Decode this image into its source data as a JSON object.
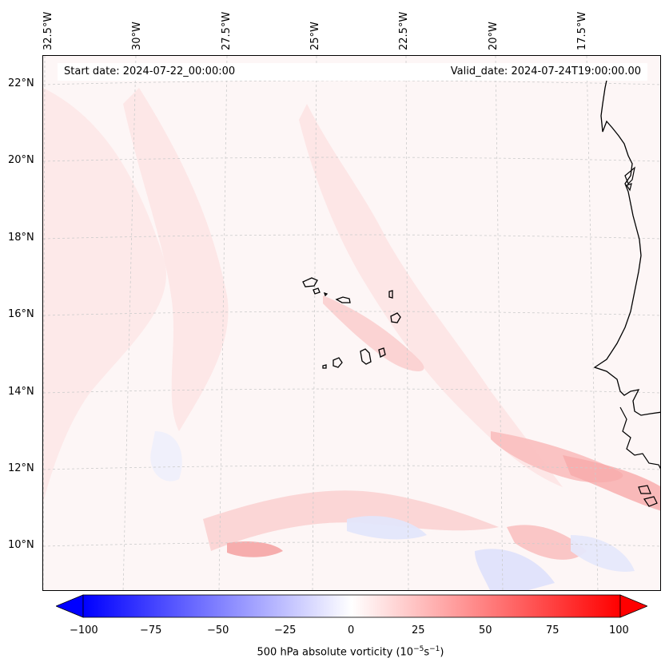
{
  "map": {
    "title_start": "Start date: 2024-07-22_00:00:00",
    "title_valid": "Valid_date: 2024-07-24T19:00:00.00",
    "lat_labels": [
      "22°N",
      "20°N",
      "18°N",
      "16°N",
      "14°N",
      "12°N",
      "10°N"
    ],
    "lon_labels": [
      "32.5°W",
      "30°W",
      "27.5°W",
      "25°W",
      "22.5°W",
      "20°W",
      "17.5°W"
    ],
    "field": "500 hPa absolute vorticity",
    "features": [
      "Cape Verde islands",
      "West African coastline"
    ]
  },
  "colorbar": {
    "ticks": [
      "−100",
      "−75",
      "−50",
      "−25",
      "0",
      "25",
      "50",
      "75",
      "100"
    ],
    "label_text": "500 hPa absolute vorticity (10",
    "label_exp1": "−5",
    "label_mid": "s",
    "label_exp2": "−1",
    "label_end": ")",
    "min": -100,
    "max": 100,
    "negative_color": "#0000ff",
    "positive_color": "#ff0000",
    "neutral_color": "#ffffff"
  }
}
